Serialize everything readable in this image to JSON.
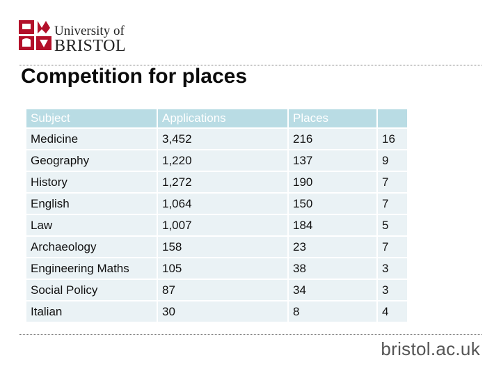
{
  "brand": {
    "logo_line1": "University of",
    "logo_line2": "BRISTOL",
    "crest_color": "#b3102a",
    "url": "bristol.ac.uk"
  },
  "slide": {
    "title": "Competition for places"
  },
  "table": {
    "header": [
      "Subject",
      "Applications",
      "Places",
      ""
    ],
    "rows": [
      [
        "Medicine",
        "3,452",
        "216",
        "16"
      ],
      [
        "Geography",
        "1,220",
        "137",
        "9"
      ],
      [
        "History",
        "1,272",
        "190",
        "7"
      ],
      [
        "English",
        "1,064",
        "150",
        "7"
      ],
      [
        "Law",
        "1,007",
        "184",
        "5"
      ],
      [
        "Archaeology",
        "158",
        "23",
        "7"
      ],
      [
        "Engineering Maths",
        "105",
        "38",
        "3"
      ],
      [
        "Social Policy",
        "87",
        "34",
        "3"
      ],
      [
        "Italian",
        "30",
        "8",
        "4"
      ]
    ],
    "header_color": "#b9dce4",
    "row_color": "#eaf2f5"
  }
}
